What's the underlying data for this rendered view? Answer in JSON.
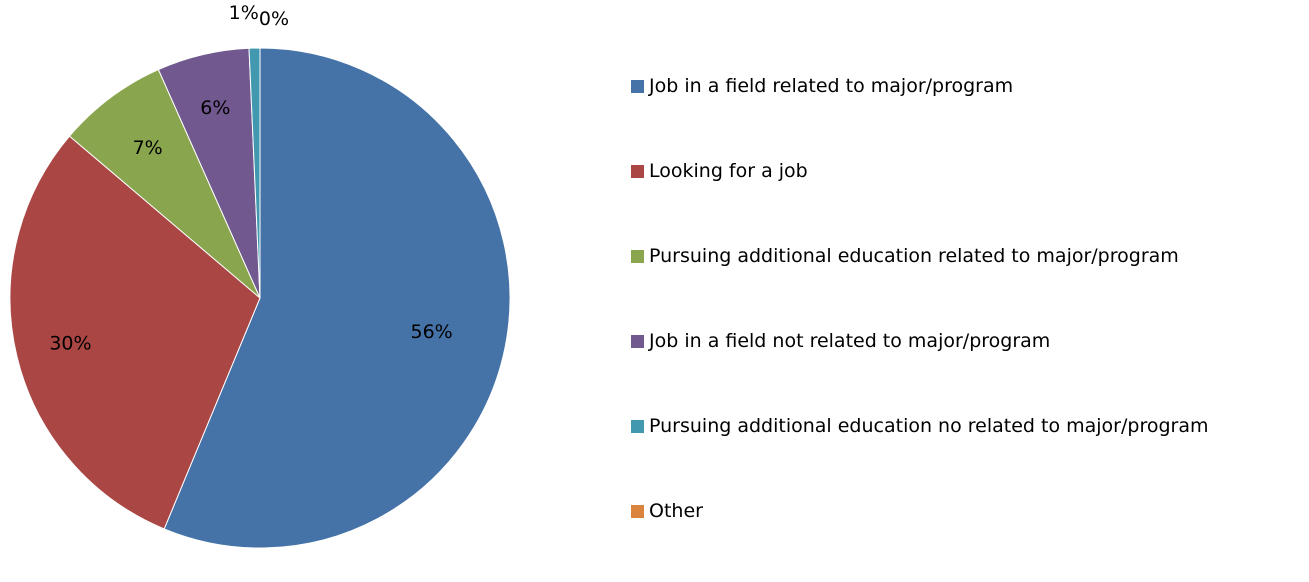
{
  "chart_data": {
    "type": "pie",
    "categories": [
      "Job in a field related to major/program",
      "Looking for a job",
      "Pursuing additional education related to major/program",
      "Job in a field not related to major/program",
      "Pursuing additional education no related to major/program",
      "Other"
    ],
    "values": [
      56,
      30,
      7,
      6,
      1,
      0
    ],
    "data_labels": [
      "56%",
      "30%",
      "7%",
      "6%",
      "1%",
      "0%"
    ],
    "colors": [
      "#4572A7",
      "#AA4643",
      "#89A54E",
      "#71588F",
      "#4198AF",
      "#DB843D"
    ],
    "legend_position": "right",
    "start_angle": "12 o'clock, clockwise"
  }
}
